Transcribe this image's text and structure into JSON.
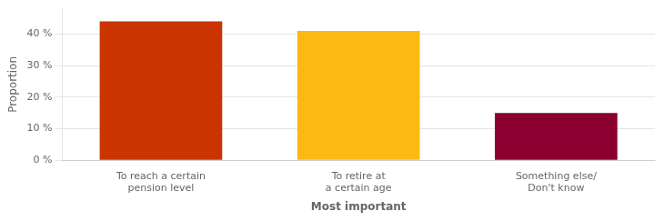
{
  "chart_data": {
    "type": "bar",
    "categories": [
      "To reach a certain\npension level",
      "To retire at\na certain age",
      "Something else/\nDon't know"
    ],
    "values": [
      0.44,
      0.41,
      0.15
    ],
    "colors": [
      "#C93400",
      "#FDB913",
      "#8B0030"
    ],
    "xlabel": "Most important",
    "ylabel": "Proportion",
    "ylim": [
      0,
      0.48
    ],
    "yticks": [
      {
        "value": 0.0,
        "label": "0 %"
      },
      {
        "value": 0.1,
        "label": "10 %"
      },
      {
        "value": 0.2,
        "label": "20 %"
      },
      {
        "value": 0.3,
        "label": "30 %"
      },
      {
        "value": 0.4,
        "label": "40 %"
      }
    ],
    "grid": true
  }
}
